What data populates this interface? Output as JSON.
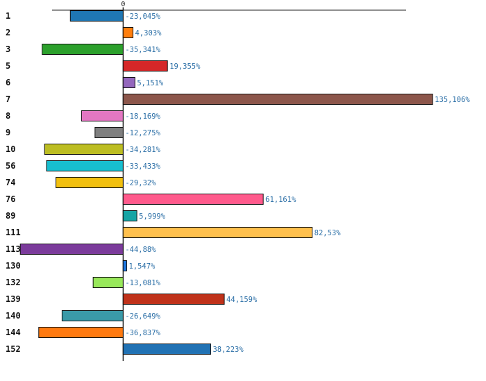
{
  "chart_data": {
    "type": "bar",
    "orientation": "horizontal",
    "title": "",
    "xlabel": "",
    "ylabel": "",
    "x_tick_labels": [
      "0"
    ],
    "xlim": [
      -49.5,
      139
    ],
    "grid": false,
    "legend": "none",
    "categories": [
      "1",
      "2",
      "3",
      "5",
      "6",
      "7",
      "8",
      "9",
      "10",
      "56",
      "74",
      "76",
      "89",
      "111",
      "113",
      "130",
      "132",
      "139",
      "140",
      "144",
      "152"
    ],
    "values": [
      -23.045,
      4.303,
      -35.341,
      19.355,
      5.151,
      135.106,
      -18.169,
      -12.275,
      -34.281,
      -33.433,
      -29.32,
      61.161,
      5.999,
      82.53,
      -44.88,
      1.547,
      -13.081,
      44.159,
      -26.649,
      -36.837,
      38.223
    ],
    "value_labels": [
      "-23,045%",
      "4,303%",
      "-35,341%",
      "19,355%",
      "5,151%",
      "135,106%",
      "-18,169%",
      "-12,275%",
      "-34,281%",
      "-33,433%",
      "-29,32%",
      "61,161%",
      "5,999%",
      "82,53%",
      "-44,88%",
      "1,547%",
      "-13,081%",
      "44,159%",
      "-26,649%",
      "-36,837%",
      "38,223%"
    ],
    "colors": [
      "#1f77b4",
      "#ff7f0e",
      "#2ca02c",
      "#d62728",
      "#9467bd",
      "#8c564b",
      "#e377c2",
      "#7f7f7f",
      "#bcbd22",
      "#17becf",
      "#f2c00f",
      "#ff5a8c",
      "#17a5a5",
      "#ffc04d",
      "#7b3b9b",
      "#1f77e0",
      "#98e85a",
      "#c0321a",
      "#3a9aa8",
      "#ff7a10",
      "#2172b4"
    ]
  }
}
